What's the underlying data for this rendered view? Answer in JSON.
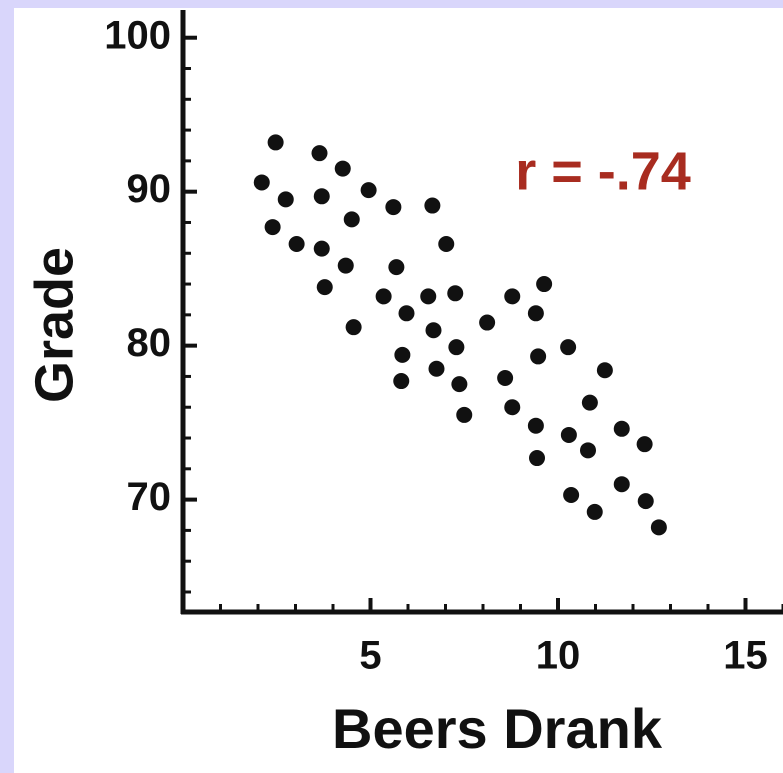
{
  "chart_data": {
    "type": "scatter",
    "xlabel": "Beers Drank",
    "ylabel": "Grade",
    "annotation": "r = -.74",
    "annotation_color": "#a82c20",
    "color": "#111111",
    "x": [
      2.1,
      2.47,
      2.74,
      2.39,
      3.03,
      3.64,
      3.7,
      3.7,
      3.78,
      4.26,
      4.34,
      4.5,
      4.55,
      4.95,
      5.35,
      5.61,
      5.69,
      5.82,
      5.85,
      5.96,
      6.54,
      6.65,
      6.68,
      6.76,
      7.02,
      7.26,
      7.29,
      7.37,
      7.5,
      8.11,
      8.59,
      8.78,
      8.78,
      9.41,
      9.44,
      9.47,
      9.41,
      9.63,
      10.27,
      10.29,
      10.35,
      10.8,
      10.85,
      10.98,
      11.25,
      11.7,
      11.7,
      12.31,
      12.34,
      12.69
    ],
    "values": [
      90.6,
      93.2,
      89.5,
      87.7,
      86.6,
      92.5,
      89.7,
      86.3,
      83.8,
      91.5,
      85.2,
      88.2,
      81.2,
      90.1,
      83.2,
      89.0,
      85.1,
      77.7,
      79.4,
      82.1,
      83.2,
      89.1,
      81.0,
      78.5,
      86.6,
      83.4,
      79.9,
      77.5,
      75.5,
      81.5,
      77.9,
      76.0,
      83.2,
      74.8,
      72.7,
      79.3,
      82.1,
      84.0,
      79.9,
      74.2,
      70.3,
      73.2,
      76.3,
      69.2,
      78.4,
      74.6,
      71.0,
      73.6,
      69.9,
      68.2
    ],
    "xlim": [
      0,
      16
    ],
    "ylim": [
      62.7,
      101.8
    ],
    "xticks": [
      5,
      10,
      15
    ],
    "yticks": [
      70,
      80,
      90,
      100
    ],
    "xminorticks": [
      1,
      2,
      3,
      4,
      6,
      7,
      8,
      9,
      11,
      12,
      13,
      14,
      16
    ],
    "yminorticks": [
      64,
      66,
      68,
      72,
      74,
      76,
      78,
      82,
      84,
      86,
      88,
      92,
      94,
      96,
      98
    ]
  }
}
